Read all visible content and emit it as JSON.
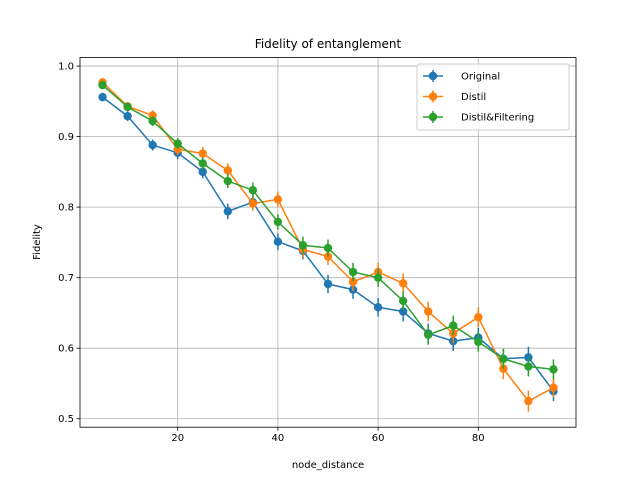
{
  "chart_data": {
    "type": "line",
    "title": "Fidelity of entanglement",
    "xlabel": "node_distance",
    "ylabel": "Fidelity",
    "xlim": [
      0.5,
      99.5
    ],
    "ylim": [
      0.488,
      1.012
    ],
    "xticks": [
      20,
      40,
      60,
      80
    ],
    "yticks": [
      0.5,
      0.6,
      0.7,
      0.8,
      0.9,
      1.0
    ],
    "grid": true,
    "legend_position": "top-right",
    "x": [
      5,
      10,
      15,
      20,
      25,
      30,
      35,
      40,
      45,
      50,
      55,
      60,
      65,
      70,
      75,
      80,
      85,
      90,
      95
    ],
    "series": [
      {
        "name": "Original",
        "color": "#1f77b4",
        "values": [
          0.956,
          0.929,
          0.888,
          0.877,
          0.85,
          0.794,
          0.807,
          0.751,
          0.738,
          0.691,
          0.683,
          0.658,
          0.652,
          0.621,
          0.61,
          0.615,
          0.585,
          0.587,
          0.539
        ],
        "errors": [
          0.006,
          0.007,
          0.008,
          0.009,
          0.009,
          0.011,
          0.011,
          0.012,
          0.012,
          0.013,
          0.013,
          0.013,
          0.014,
          0.014,
          0.014,
          0.014,
          0.014,
          0.015,
          0.014
        ]
      },
      {
        "name": "Distil",
        "color": "#ff7f0e",
        "values": [
          0.977,
          0.943,
          0.93,
          0.882,
          0.876,
          0.852,
          0.805,
          0.811,
          0.74,
          0.73,
          0.694,
          0.708,
          0.692,
          0.652,
          0.621,
          0.644,
          0.571,
          0.525,
          0.544
        ],
        "errors": [
          0.005,
          0.006,
          0.007,
          0.008,
          0.009,
          0.01,
          0.01,
          0.011,
          0.012,
          0.012,
          0.013,
          0.013,
          0.014,
          0.014,
          0.014,
          0.014,
          0.015,
          0.015,
          0.014
        ]
      },
      {
        "name": "Distil&Filtering",
        "color": "#2ca02c",
        "values": [
          0.973,
          0.942,
          0.922,
          0.89,
          0.862,
          0.837,
          0.824,
          0.779,
          0.746,
          0.742,
          0.708,
          0.7,
          0.667,
          0.619,
          0.632,
          0.609,
          0.585,
          0.574,
          0.57
        ],
        "errors": [
          0.005,
          0.006,
          0.007,
          0.008,
          0.009,
          0.01,
          0.011,
          0.011,
          0.012,
          0.012,
          0.013,
          0.013,
          0.013,
          0.014,
          0.014,
          0.014,
          0.014,
          0.014,
          0.014
        ]
      }
    ]
  }
}
